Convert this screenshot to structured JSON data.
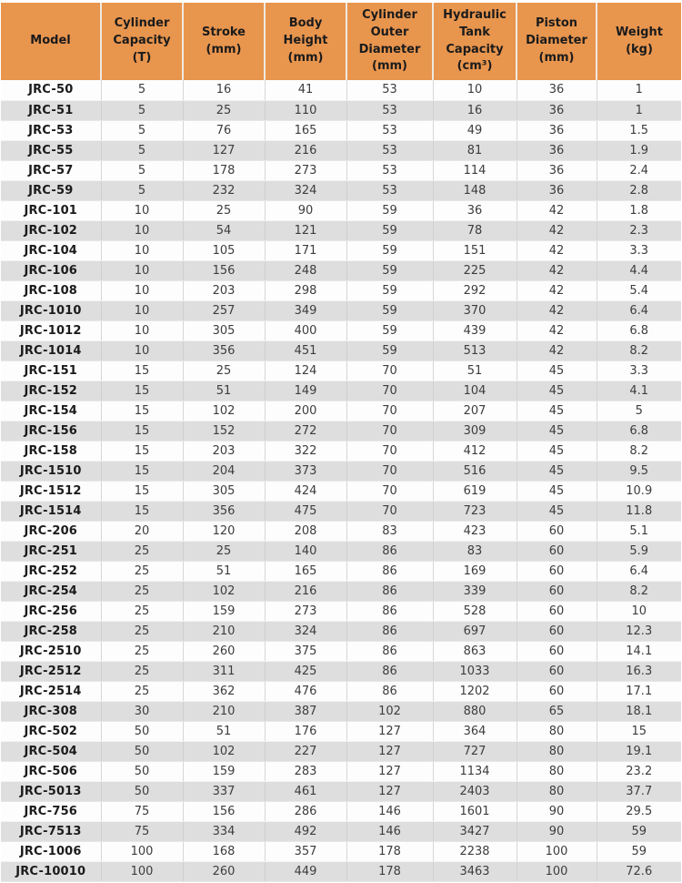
{
  "colors": {
    "header_bg": "#E8954E",
    "row_bg": "#FDFDFD",
    "row_alt_bg": "#DEDEDE",
    "header_text": "#1B1B1B",
    "value_text": "#3D3D3D"
  },
  "table": {
    "columns": [
      "Model",
      "Cylinder Capacity (T)",
      "Stroke (mm)",
      "Body Height (mm)",
      "Cylinder Outer Diameter (mm)",
      "Hydraulic Tank Capacity (cm³)",
      "Piston Diameter (mm)",
      "Weight (kg)"
    ],
    "rows": [
      [
        "JRC-50",
        "5",
        "16",
        "41",
        "53",
        "10",
        "36",
        "1"
      ],
      [
        "JRC-51",
        "5",
        "25",
        "110",
        "53",
        "16",
        "36",
        "1"
      ],
      [
        "JRC-53",
        "5",
        "76",
        "165",
        "53",
        "49",
        "36",
        "1.5"
      ],
      [
        "JRC-55",
        "5",
        "127",
        "216",
        "53",
        "81",
        "36",
        "1.9"
      ],
      [
        "JRC-57",
        "5",
        "178",
        "273",
        "53",
        "114",
        "36",
        "2.4"
      ],
      [
        "JRC-59",
        "5",
        "232",
        "324",
        "53",
        "148",
        "36",
        "2.8"
      ],
      [
        "JRC-101",
        "10",
        "25",
        "90",
        "59",
        "36",
        "42",
        "1.8"
      ],
      [
        "JRC-102",
        "10",
        "54",
        "121",
        "59",
        "78",
        "42",
        "2.3"
      ],
      [
        "JRC-104",
        "10",
        "105",
        "171",
        "59",
        "151",
        "42",
        "3.3"
      ],
      [
        "JRC-106",
        "10",
        "156",
        "248",
        "59",
        "225",
        "42",
        "4.4"
      ],
      [
        "JRC-108",
        "10",
        "203",
        "298",
        "59",
        "292",
        "42",
        "5.4"
      ],
      [
        "JRC-1010",
        "10",
        "257",
        "349",
        "59",
        "370",
        "42",
        "6.4"
      ],
      [
        "JRC-1012",
        "10",
        "305",
        "400",
        "59",
        "439",
        "42",
        "6.8"
      ],
      [
        "JRC-1014",
        "10",
        "356",
        "451",
        "59",
        "513",
        "42",
        "8.2"
      ],
      [
        "JRC-151",
        "15",
        "25",
        "124",
        "70",
        "51",
        "45",
        "3.3"
      ],
      [
        "JRC-152",
        "15",
        "51",
        "149",
        "70",
        "104",
        "45",
        "4.1"
      ],
      [
        "JRC-154",
        "15",
        "102",
        "200",
        "70",
        "207",
        "45",
        "5"
      ],
      [
        "JRC-156",
        "15",
        "152",
        "272",
        "70",
        "309",
        "45",
        "6.8"
      ],
      [
        "JRC-158",
        "15",
        "203",
        "322",
        "70",
        "412",
        "45",
        "8.2"
      ],
      [
        "JRC-1510",
        "15",
        "204",
        "373",
        "70",
        "516",
        "45",
        "9.5"
      ],
      [
        "JRC-1512",
        "15",
        "305",
        "424",
        "70",
        "619",
        "45",
        "10.9"
      ],
      [
        "JRC-1514",
        "15",
        "356",
        "475",
        "70",
        "723",
        "45",
        "11.8"
      ],
      [
        "JRC-206",
        "20",
        "120",
        "208",
        "83",
        "423",
        "60",
        "5.1"
      ],
      [
        "JRC-251",
        "25",
        "25",
        "140",
        "86",
        "83",
        "60",
        "5.9"
      ],
      [
        "JRC-252",
        "25",
        "51",
        "165",
        "86",
        "169",
        "60",
        "6.4"
      ],
      [
        "JRC-254",
        "25",
        "102",
        "216",
        "86",
        "339",
        "60",
        "8.2"
      ],
      [
        "JRC-256",
        "25",
        "159",
        "273",
        "86",
        "528",
        "60",
        "10"
      ],
      [
        "JRC-258",
        "25",
        "210",
        "324",
        "86",
        "697",
        "60",
        "12.3"
      ],
      [
        "JRC-2510",
        "25",
        "260",
        "375",
        "86",
        "863",
        "60",
        "14.1"
      ],
      [
        "JRC-2512",
        "25",
        "311",
        "425",
        "86",
        "1033",
        "60",
        "16.3"
      ],
      [
        "JRC-2514",
        "25",
        "362",
        "476",
        "86",
        "1202",
        "60",
        "17.1"
      ],
      [
        "JRC-308",
        "30",
        "210",
        "387",
        "102",
        "880",
        "65",
        "18.1"
      ],
      [
        "JRC-502",
        "50",
        "51",
        "176",
        "127",
        "364",
        "80",
        "15"
      ],
      [
        "JRC-504",
        "50",
        "102",
        "227",
        "127",
        "727",
        "80",
        "19.1"
      ],
      [
        "JRC-506",
        "50",
        "159",
        "283",
        "127",
        "1134",
        "80",
        "23.2"
      ],
      [
        "JRC-5013",
        "50",
        "337",
        "461",
        "127",
        "2403",
        "80",
        "37.7"
      ],
      [
        "JRC-756",
        "75",
        "156",
        "286",
        "146",
        "1601",
        "90",
        "29.5"
      ],
      [
        "JRC-7513",
        "75",
        "334",
        "492",
        "146",
        "3427",
        "90",
        "59"
      ],
      [
        "JRC-1006",
        "100",
        "168",
        "357",
        "178",
        "2238",
        "100",
        "59"
      ],
      [
        "JRC-10010",
        "100",
        "260",
        "449",
        "178",
        "3463",
        "100",
        "72.6"
      ]
    ]
  }
}
